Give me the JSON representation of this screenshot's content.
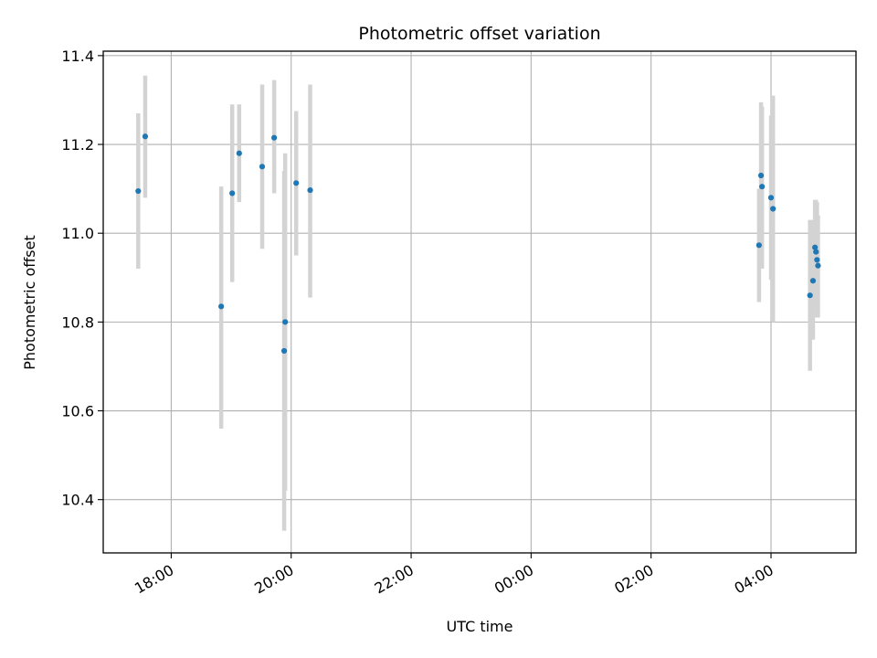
{
  "chart_data": {
    "type": "scatter",
    "title": "Photometric offset variation",
    "xlabel": "UTC time",
    "ylabel": "Photometric offset",
    "x_unit": "UTC time (hh:mm); values after 00:00 fall on the following day",
    "xlim": [
      "16:52",
      "05:25"
    ],
    "ylim": [
      10.28,
      11.41
    ],
    "x_ticks": [
      "18:00",
      "20:00",
      "22:00",
      "00:00",
      "02:00",
      "04:00"
    ],
    "y_ticks": [
      10.4,
      10.6,
      10.8,
      11.0,
      11.2,
      11.4
    ],
    "y_tick_labels": [
      "10.4",
      "10.6",
      "10.8",
      "11.0",
      "11.2",
      "11.4"
    ],
    "grid": true,
    "legend": false,
    "marker_color": "#1f77b4",
    "errorbar_color": "#d3d3d3",
    "series": [
      {
        "points": [
          {
            "x": "17:27",
            "y": 11.095,
            "ymin": 10.92,
            "ymax": 11.27
          },
          {
            "x": "17:34",
            "y": 11.218,
            "ymin": 11.08,
            "ymax": 11.355
          },
          {
            "x": "18:50",
            "y": 10.835,
            "ymin": 10.56,
            "ymax": 11.105
          },
          {
            "x": "19:01",
            "y": 11.09,
            "ymin": 10.89,
            "ymax": 11.29
          },
          {
            "x": "19:08",
            "y": 11.18,
            "ymin": 11.07,
            "ymax": 11.29
          },
          {
            "x": "19:31",
            "y": 11.15,
            "ymin": 10.965,
            "ymax": 11.335
          },
          {
            "x": "19:43",
            "y": 11.215,
            "ymin": 11.09,
            "ymax": 11.345
          },
          {
            "x": "19:53",
            "y": 10.735,
            "ymin": 10.33,
            "ymax": 11.14
          },
          {
            "x": "19:54",
            "y": 10.8,
            "ymin": 10.42,
            "ymax": 11.18
          },
          {
            "x": "20:05",
            "y": 11.113,
            "ymin": 10.95,
            "ymax": 11.275
          },
          {
            "x": "20:19",
            "y": 11.097,
            "ymin": 10.855,
            "ymax": 11.335
          },
          {
            "x": "03:48",
            "y": 10.973,
            "ymin": 10.845,
            "ymax": 11.1
          },
          {
            "x": "03:50",
            "y": 11.13,
            "ymin": 10.96,
            "ymax": 11.295
          },
          {
            "x": "03:51",
            "y": 11.105,
            "ymin": 10.92,
            "ymax": 11.285
          },
          {
            "x": "04:00",
            "y": 11.08,
            "ymin": 10.895,
            "ymax": 11.265
          },
          {
            "x": "04:02",
            "y": 11.055,
            "ymin": 10.8,
            "ymax": 11.31
          },
          {
            "x": "04:39",
            "y": 10.86,
            "ymin": 10.69,
            "ymax": 11.03
          },
          {
            "x": "04:42",
            "y": 10.893,
            "ymin": 10.76,
            "ymax": 11.03
          },
          {
            "x": "04:44",
            "y": 10.968,
            "ymin": 10.86,
            "ymax": 11.075
          },
          {
            "x": "04:45",
            "y": 10.958,
            "ymin": 10.84,
            "ymax": 11.075
          },
          {
            "x": "04:46",
            "y": 10.94,
            "ymin": 10.81,
            "ymax": 11.07
          },
          {
            "x": "04:47",
            "y": 10.927,
            "ymin": 10.81,
            "ymax": 11.04
          }
        ]
      }
    ]
  }
}
